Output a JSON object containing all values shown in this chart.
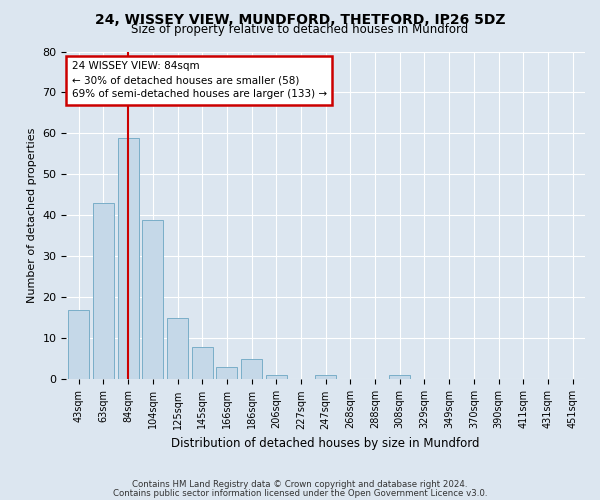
{
  "title1": "24, WISSEY VIEW, MUNDFORD, THETFORD, IP26 5DZ",
  "title2": "Size of property relative to detached houses in Mundford",
  "xlabel": "Distribution of detached houses by size in Mundford",
  "ylabel": "Number of detached properties",
  "categories": [
    "43sqm",
    "63sqm",
    "84sqm",
    "104sqm",
    "125sqm",
    "145sqm",
    "166sqm",
    "186sqm",
    "206sqm",
    "227sqm",
    "247sqm",
    "268sqm",
    "288sqm",
    "308sqm",
    "329sqm",
    "349sqm",
    "370sqm",
    "390sqm",
    "411sqm",
    "431sqm",
    "451sqm"
  ],
  "values": [
    17,
    43,
    59,
    39,
    15,
    8,
    3,
    5,
    1,
    0,
    1,
    0,
    0,
    1,
    0,
    0,
    0,
    0,
    0,
    0,
    0
  ],
  "bar_color": "#c5d8e8",
  "bar_edge_color": "#7aaec8",
  "highlight_index": 2,
  "highlight_line_color": "#cc0000",
  "ylim": [
    0,
    80
  ],
  "yticks": [
    0,
    10,
    20,
    30,
    40,
    50,
    60,
    70,
    80
  ],
  "annotation_line1": "24 WISSEY VIEW: 84sqm",
  "annotation_line2": "← 30% of detached houses are smaller (58)",
  "annotation_line3": "69% of semi-detached houses are larger (133) →",
  "annotation_box_color": "#cc0000",
  "footer1": "Contains HM Land Registry data © Crown copyright and database right 2024.",
  "footer2": "Contains public sector information licensed under the Open Government Licence v3.0.",
  "bg_color": "#dce6f0",
  "plot_bg_color": "#dce6f0"
}
